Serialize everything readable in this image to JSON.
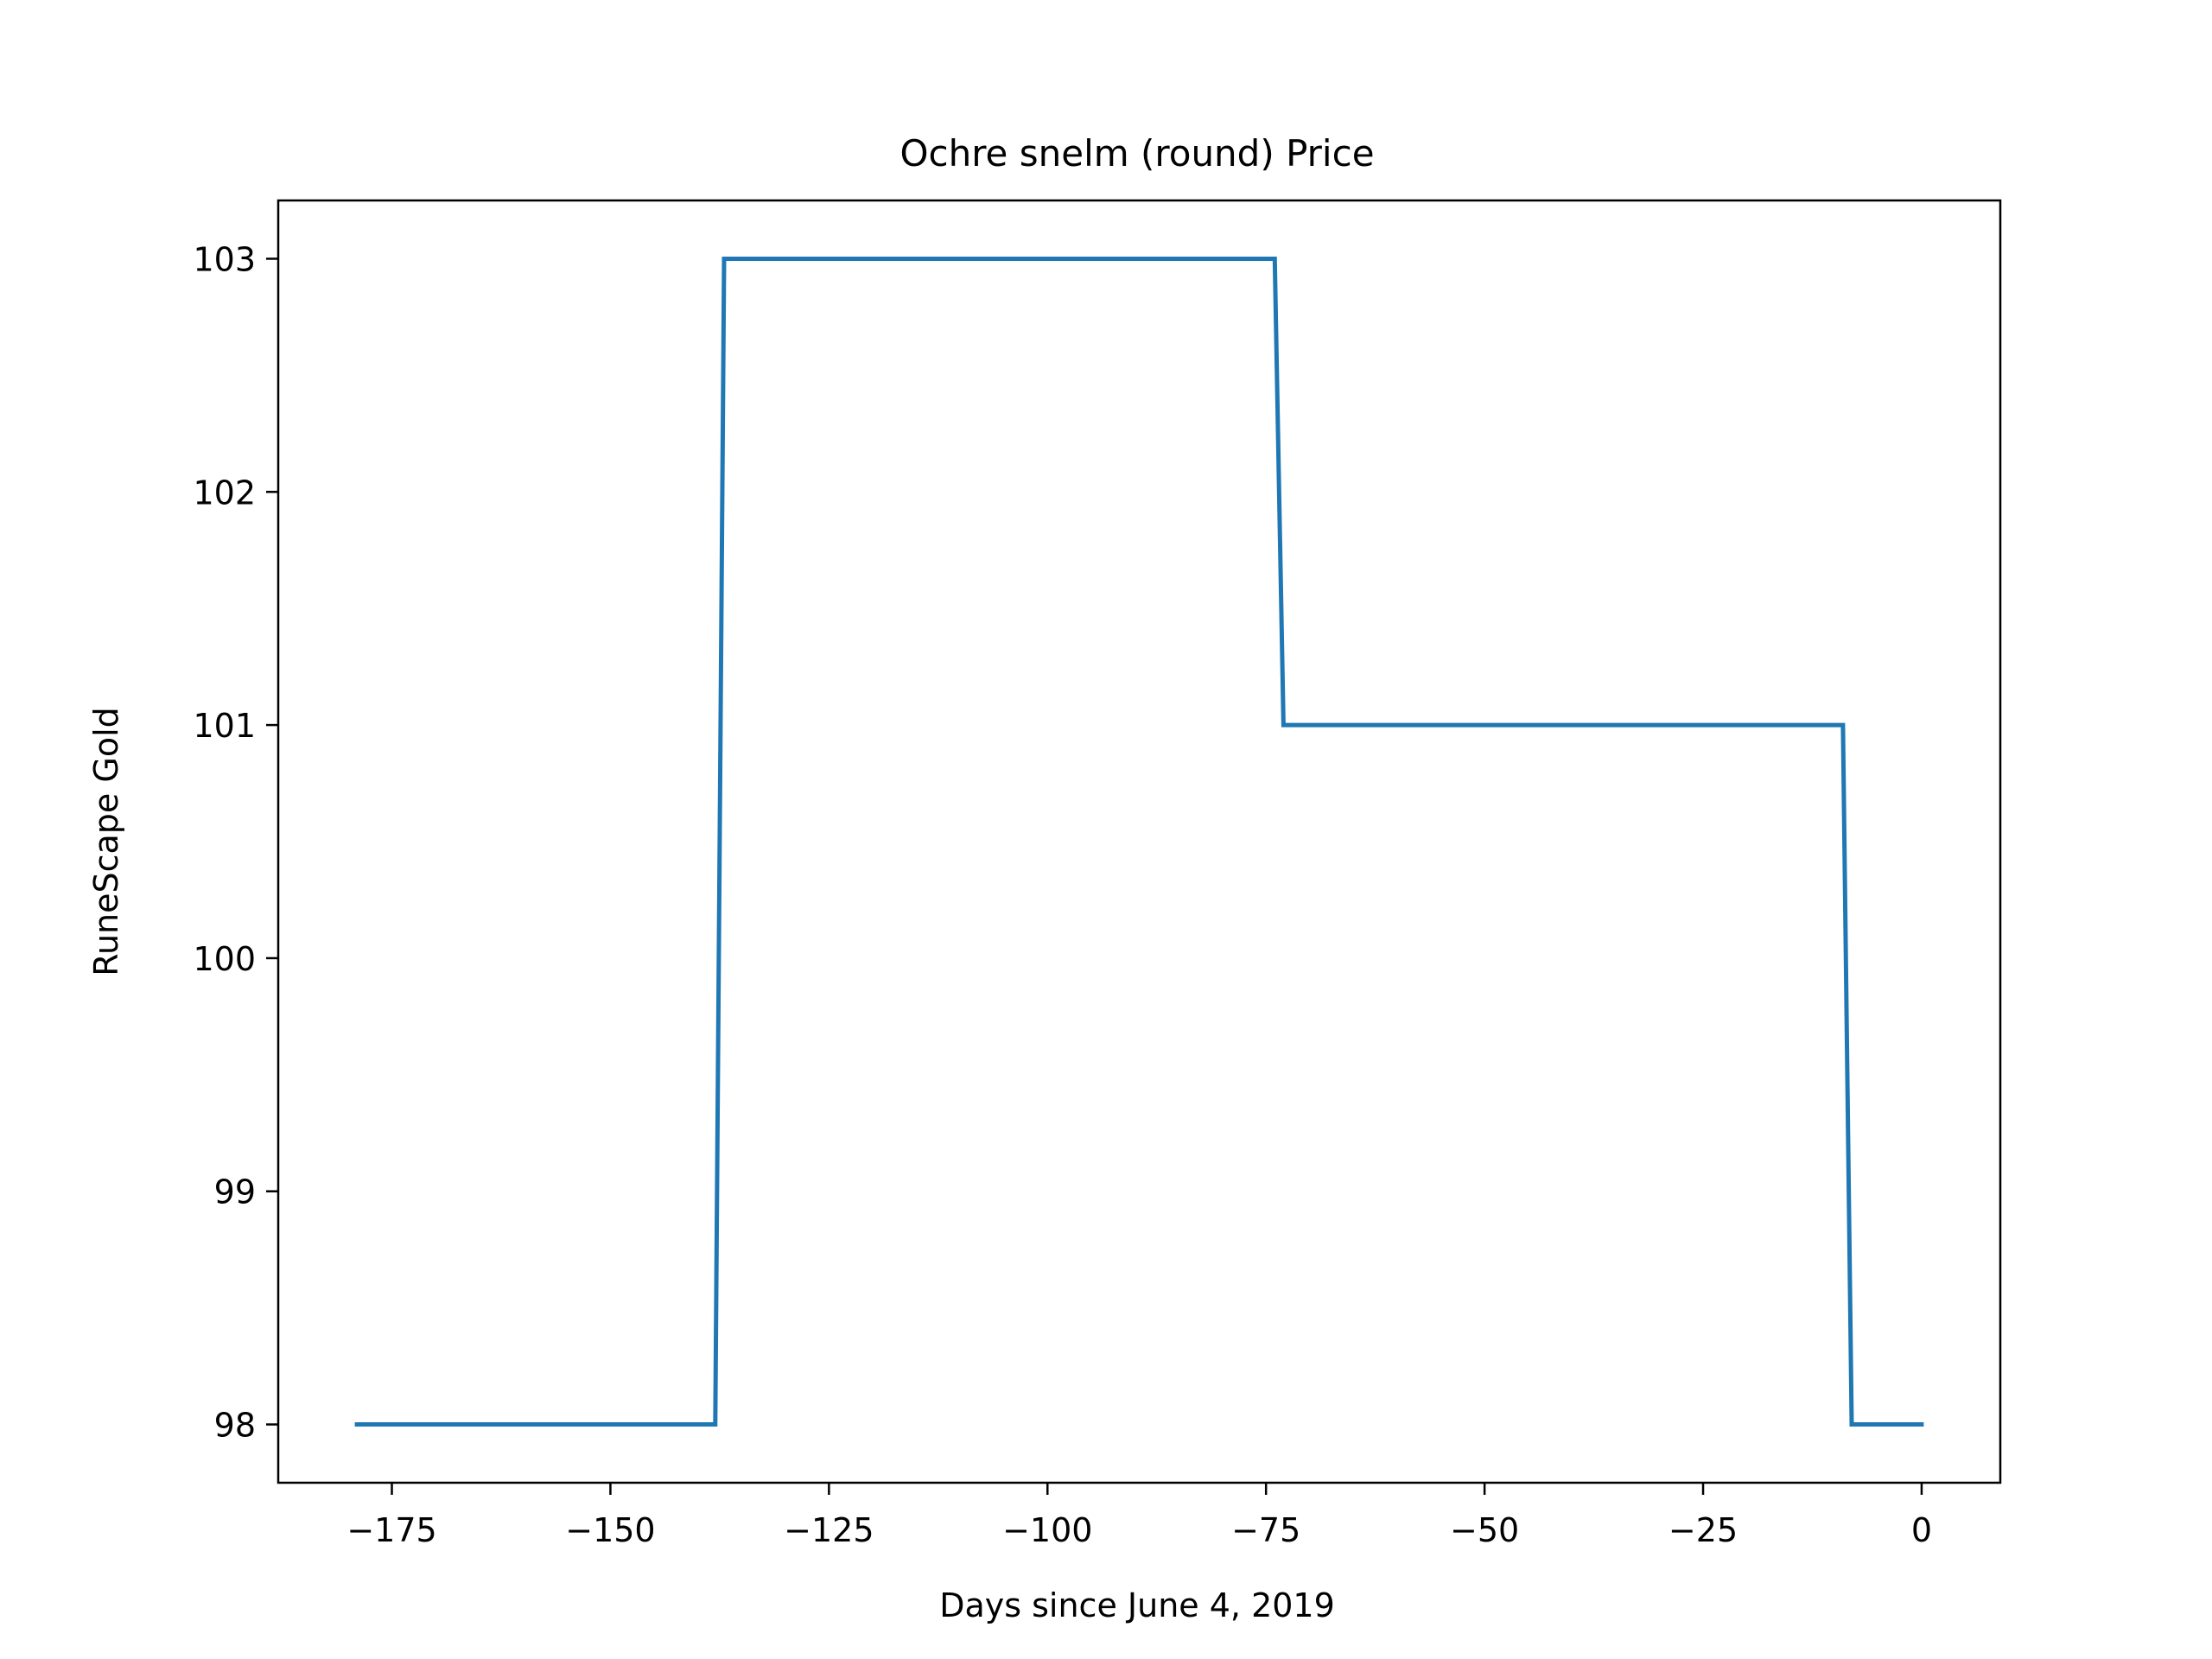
{
  "chart_data": {
    "type": "line",
    "title": "Ochre snelm (round) Price",
    "xlabel": "Days since June 4, 2019",
    "ylabel": "RuneScape Gold",
    "xlim": [
      -188,
      9
    ],
    "ylim": [
      97.75,
      103.25
    ],
    "xticks": [
      -175,
      -150,
      -125,
      -100,
      -75,
      -50,
      -25,
      0
    ],
    "xtick_labels": [
      "−175",
      "−150",
      "−125",
      "−100",
      "−75",
      "−50",
      "−25",
      "0"
    ],
    "yticks": [
      98,
      99,
      100,
      101,
      102,
      103
    ],
    "ytick_labels": [
      "98",
      "99",
      "100",
      "101",
      "102",
      "103"
    ],
    "grid": false,
    "color": "#1f77b4",
    "series": [
      {
        "x": [
          -179,
          -138,
          -137,
          -74,
          -73,
          -9,
          -8,
          0
        ],
        "y": [
          98,
          98,
          103,
          103,
          101,
          101,
          98,
          98
        ]
      }
    ]
  }
}
